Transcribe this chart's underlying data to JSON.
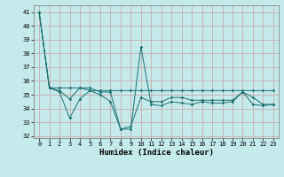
{
  "xlabel": "Humidex (Indice chaleur)",
  "xlim": [
    -0.5,
    23.5
  ],
  "ylim": [
    31.85,
    41.5
  ],
  "yticks": [
    32,
    33,
    34,
    35,
    36,
    37,
    38,
    39,
    40,
    41
  ],
  "xticks": [
    0,
    1,
    2,
    3,
    4,
    5,
    6,
    7,
    8,
    9,
    10,
    11,
    12,
    13,
    14,
    15,
    16,
    17,
    18,
    19,
    20,
    21,
    22,
    23
  ],
  "bg_color": "#c5eaec",
  "line_color": "#1a7070",
  "grid_color": "#c8a0a0",
  "line1_x": [
    0,
    1,
    2,
    3,
    4,
    5,
    6,
    7,
    8,
    9,
    10,
    11,
    12,
    13,
    14,
    15,
    16,
    17,
    18,
    19,
    20,
    21,
    22,
    23
  ],
  "line1_y": [
    41.0,
    35.5,
    35.5,
    35.5,
    35.5,
    35.3,
    35.3,
    35.3,
    35.3,
    35.3,
    35.3,
    35.3,
    35.3,
    35.3,
    35.3,
    35.3,
    35.3,
    35.3,
    35.3,
    35.3,
    35.3,
    35.3,
    35.3,
    35.3
  ],
  "line2_x": [
    0,
    1,
    2,
    3,
    4,
    5,
    6,
    7,
    8,
    9,
    10,
    11,
    12,
    13,
    14,
    15,
    16,
    17,
    18,
    19,
    20,
    21,
    22,
    23
  ],
  "line2_y": [
    41.0,
    35.5,
    35.3,
    34.7,
    35.5,
    35.5,
    35.2,
    35.2,
    32.5,
    32.7,
    34.8,
    34.5,
    34.5,
    34.8,
    34.8,
    34.6,
    34.6,
    34.6,
    34.6,
    34.6,
    35.2,
    34.8,
    34.3,
    34.3
  ],
  "line3_x": [
    0,
    1,
    2,
    3,
    4,
    5,
    6,
    7,
    8,
    9,
    10,
    11,
    12,
    13,
    14,
    15,
    16,
    17,
    18,
    19,
    20,
    21,
    22,
    23
  ],
  "line3_y": [
    41.0,
    35.5,
    35.2,
    33.3,
    34.7,
    35.3,
    35.0,
    34.5,
    32.5,
    32.5,
    38.5,
    34.3,
    34.2,
    34.5,
    34.4,
    34.3,
    34.5,
    34.4,
    34.4,
    34.5,
    35.2,
    34.3,
    34.2,
    34.3
  ],
  "linewidth": 0.7,
  "markersize": 1.8,
  "tick_fontsize": 5.0,
  "xlabel_fontsize": 6.5
}
